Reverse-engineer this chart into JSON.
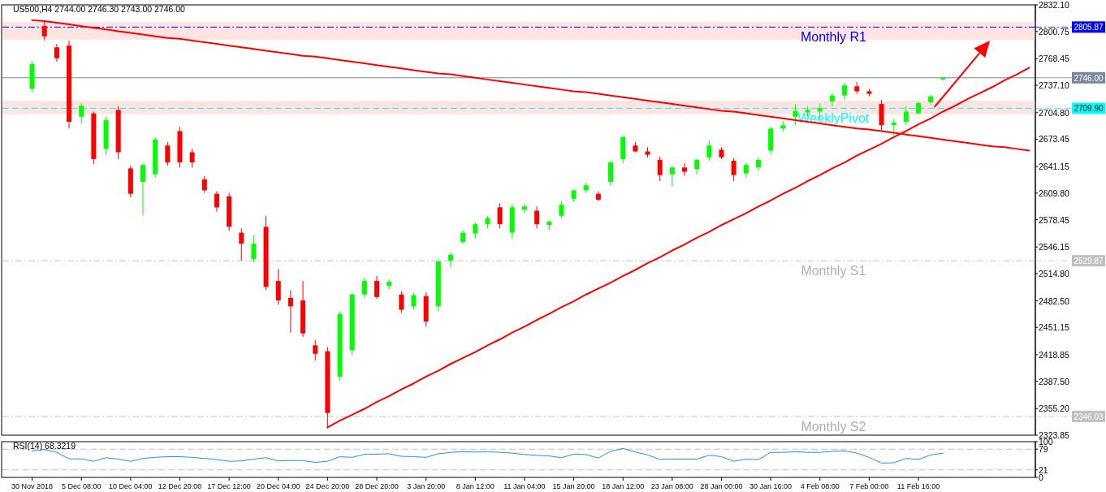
{
  "chart_data": [
    {
      "type": "candlestick",
      "title": "US500,H4  2744.00 2746.30 2743.00 2746.00",
      "categories": [
        null,
        null,
        null,
        null,
        null,
        null,
        null,
        null,
        null,
        null,
        null,
        null,
        null,
        null,
        null,
        null,
        null,
        null,
        null,
        null,
        null,
        null,
        null,
        null,
        null,
        null,
        null,
        null,
        null,
        null,
        null,
        null,
        null,
        null,
        null,
        null,
        null,
        null,
        null,
        null,
        null,
        null,
        null,
        null,
        null,
        null,
        null,
        null,
        null,
        null,
        null,
        null,
        null,
        null,
        null,
        null,
        null,
        null,
        null,
        null,
        null,
        null,
        null,
        null,
        null,
        null,
        null,
        null,
        null,
        null,
        null,
        null,
        null,
        null,
        null,
        null,
        null,
        null,
        null,
        null,
        null,
        null
      ],
      "ohlc": [
        [
          2733,
          2766,
          2729,
          2762
        ],
        [
          2807,
          2812,
          2790,
          2795
        ],
        [
          2782,
          2786,
          2765,
          2769
        ],
        [
          2784,
          2790,
          2686,
          2694
        ],
        [
          2700,
          2716,
          2692,
          2713
        ],
        [
          2704,
          2706,
          2644,
          2650
        ],
        [
          2662,
          2700,
          2655,
          2696
        ],
        [
          2708,
          2712,
          2650,
          2658
        ],
        [
          2639,
          2642,
          2605,
          2609
        ],
        [
          2623,
          2645,
          2583,
          2643
        ],
        [
          2632,
          2676,
          2628,
          2673
        ],
        [
          2666,
          2670,
          2642,
          2646
        ],
        [
          2683,
          2688,
          2640,
          2646
        ],
        [
          2658,
          2662,
          2640,
          2646
        ],
        [
          2626,
          2630,
          2610,
          2613
        ],
        [
          2609,
          2612,
          2588,
          2593
        ],
        [
          2606,
          2610,
          2565,
          2570
        ],
        [
          2563,
          2568,
          2530,
          2550
        ],
        [
          2532,
          2560,
          2528,
          2550
        ],
        [
          2570,
          2583,
          2495,
          2499
        ],
        [
          2506,
          2520,
          2478,
          2483
        ],
        [
          2486,
          2495,
          2445,
          2476
        ],
        [
          2483,
          2506,
          2440,
          2444
        ],
        [
          2430,
          2436,
          2412,
          2420
        ],
        [
          2423,
          2428,
          2332,
          2350
        ],
        [
          2393,
          2470,
          2388,
          2467
        ],
        [
          2424,
          2492,
          2418,
          2490
        ],
        [
          2490,
          2510,
          2486,
          2506
        ],
        [
          2506,
          2512,
          2485,
          2487
        ],
        [
          2500,
          2508,
          2496,
          2505
        ],
        [
          2490,
          2494,
          2468,
          2472
        ],
        [
          2476,
          2492,
          2472,
          2489
        ],
        [
          2488,
          2493,
          2452,
          2458
        ],
        [
          2476,
          2532,
          2470,
          2529
        ],
        [
          2530,
          2540,
          2522,
          2537
        ],
        [
          2552,
          2566,
          2550,
          2563
        ],
        [
          2562,
          2575,
          2556,
          2573
        ],
        [
          2573,
          2583,
          2568,
          2580
        ],
        [
          2593,
          2598,
          2568,
          2573
        ],
        [
          2563,
          2597,
          2556,
          2593
        ],
        [
          2590,
          2597,
          2586,
          2594
        ],
        [
          2589,
          2594,
          2568,
          2573
        ],
        [
          2572,
          2578,
          2566,
          2576
        ],
        [
          2583,
          2600,
          2580,
          2596
        ],
        [
          2603,
          2614,
          2600,
          2613
        ],
        [
          2613,
          2622,
          2610,
          2619
        ],
        [
          2609,
          2612,
          2600,
          2602
        ],
        [
          2623,
          2648,
          2618,
          2646
        ],
        [
          2650,
          2676,
          2645,
          2676
        ],
        [
          2666,
          2670,
          2658,
          2659
        ],
        [
          2659,
          2664,
          2652,
          2655
        ],
        [
          2649,
          2653,
          2624,
          2631
        ],
        [
          2632,
          2642,
          2618,
          2640
        ],
        [
          2640,
          2645,
          2630,
          2635
        ],
        [
          2638,
          2650,
          2632,
          2649
        ],
        [
          2652,
          2672,
          2648,
          2666
        ],
        [
          2661,
          2664,
          2650,
          2652
        ],
        [
          2648,
          2651,
          2624,
          2631
        ],
        [
          2633,
          2645,
          2628,
          2643
        ],
        [
          2640,
          2652,
          2636,
          2649
        ],
        [
          2660,
          2688,
          2655,
          2686
        ],
        [
          2686,
          2695,
          2682,
          2690
        ],
        [
          2700,
          2715,
          2690,
          2707
        ],
        [
          2705,
          2712,
          2700,
          2708
        ],
        [
          2706,
          2716,
          2698,
          2710
        ],
        [
          2718,
          2728,
          2712,
          2725
        ],
        [
          2725,
          2740,
          2720,
          2737
        ],
        [
          2736,
          2741,
          2727,
          2730
        ],
        [
          2730,
          2733,
          2724,
          2727
        ],
        [
          2715,
          2720,
          2684,
          2690
        ],
        [
          2690,
          2697,
          2678,
          2693
        ],
        [
          2694,
          2712,
          2690,
          2706
        ],
        [
          2704,
          2718,
          2702,
          2716
        ],
        [
          2717,
          2726,
          2714,
          2724
        ],
        [
          2744,
          2746.3,
          2743,
          2746
        ],
        null,
        null,
        null,
        null,
        null,
        null,
        null
      ],
      "colors": [
        "#00ff00",
        "#ff0000",
        "#ff0000",
        "#ff0000",
        "#00ff00",
        "#ff0000",
        "#00ff00",
        "#ff0000",
        "#ff0000",
        "#00ff00",
        "#00ff00",
        "#ff0000",
        "#ff0000",
        "#ff0000",
        "#ff0000",
        "#ff0000",
        "#ff0000",
        "#ff0000",
        "#00ff00",
        "#ff0000",
        "#ff0000",
        "#ff0000",
        "#ff0000",
        "#ff0000",
        "#ff0000",
        "#00ff00",
        "#00ff00",
        "#00ff00",
        "#ff0000",
        "#00ff00",
        "#ff0000",
        "#00ff00",
        "#ff0000",
        "#00ff00",
        "#00ff00",
        "#00ff00",
        "#00ff00",
        "#00ff00",
        "#ff0000",
        "#00ff00",
        "#00ff00",
        "#ff0000",
        "#00ff00",
        "#00ff00",
        "#00ff00",
        "#00ff00",
        "#ff0000",
        "#00ff00",
        "#00ff00",
        "#ff0000",
        "#ff0000",
        "#ff0000",
        "#00ff00",
        "#ff0000",
        "#00ff00",
        "#00ff00",
        "#ff0000",
        "#ff0000",
        "#00ff00",
        "#00ff00",
        "#00ff00",
        "#00ff00",
        "#00ff00",
        "#00ff00",
        "#00ff00",
        "#00ff00",
        "#00ff00",
        "#ff0000",
        "#ff0000",
        "#ff0000",
        "#00ff00",
        "#00ff00",
        "#00ff00",
        "#00ff00",
        "#00ff00",
        null,
        null,
        null,
        null,
        null,
        null,
        null
      ],
      "series": [
        {
          "type": "line",
          "color": "#ff0000",
          "values": [
            2814,
            2813,
            2811,
            2809,
            2807,
            2805,
            2803,
            2801,
            2799,
            2797,
            2795,
            2793,
            2792,
            2790,
            2788,
            2786,
            2784,
            2782,
            2780,
            2778,
            2776,
            2774,
            2772,
            2771,
            2769,
            2767,
            2765,
            2763,
            2761,
            2759,
            2757,
            2755,
            2753,
            2751,
            2750,
            2748,
            2746,
            2744,
            2742,
            2740,
            2738,
            2736,
            2734,
            2732,
            2730,
            2729,
            2727,
            2725,
            2723,
            2721,
            2719,
            2717,
            2715,
            2713,
            2711,
            2709,
            2707,
            2706,
            2704,
            2702,
            2700,
            2698,
            2696,
            2694,
            2692,
            2690,
            2688,
            2686,
            2685,
            2683,
            2681,
            2679,
            2677,
            2675,
            2673,
            2671,
            2669,
            2667,
            2665,
            2664,
            2662,
            2660
          ]
        },
        {
          "type": "line",
          "color": "#ff0000",
          "values": [
            null,
            null,
            null,
            null,
            null,
            null,
            null,
            null,
            null,
            null,
            null,
            null,
            null,
            null,
            null,
            null,
            null,
            null,
            null,
            null,
            null,
            null,
            null,
            null,
            2333,
            2341,
            2348,
            2355,
            2363,
            2370,
            2378,
            2385,
            2393,
            2400,
            2408,
            2415,
            2422,
            2430,
            2437,
            2445,
            2452,
            2460,
            2467,
            2475,
            2482,
            2490,
            2497,
            2504,
            2512,
            2519,
            2527,
            2534,
            2542,
            2549,
            2557,
            2564,
            2572,
            2579,
            2586,
            2594,
            2601,
            2609,
            2616,
            2624,
            2631,
            2639,
            2646,
            2654,
            2661,
            2668,
            2676,
            2683,
            2691,
            2698,
            2706,
            2713,
            2721,
            2728,
            2735,
            2743,
            2750,
            2758
          ]
        }
      ],
      "ylim": [
        2323.85,
        2832.1
      ],
      "yticks": [
        {
          "value": 2832.1,
          "label": "2832.10"
        },
        2800.75,
        2768.45,
        {
          "value": 2737.1,
          "label": "2737.10"
        },
        {
          "value": 2704.8,
          "label": "2704.80"
        },
        2673.45,
        2641.15,
        {
          "value": 2609.8,
          "label": "2609.80"
        },
        2578.45,
        2546.15,
        {
          "value": 2514.8,
          "label": "2514.80"
        },
        {
          "value": 2482.5,
          "label": "2482.50"
        },
        2451.15,
        2418.85,
        {
          "value": 2387.5,
          "label": "2387.50"
        },
        {
          "value": 2355.2,
          "label": "2355.20"
        },
        2323.85
      ],
      "bands": [
        {
          "axis": "y",
          "from": 2791,
          "to": 2812,
          "color": "#ffe4e1"
        },
        {
          "axis": "y",
          "from": 2703,
          "to": 2719,
          "color": "#ffe4e1"
        }
      ],
      "ref_lines": [
        {
          "axis": "y",
          "value": 2805.87,
          "label": "2805.87",
          "color": "#0000ff",
          "line_style": "dashdot"
        },
        {
          "axis": "y",
          "value": 2746,
          "label": "2746.00",
          "color": "#778899",
          "line_style": "solid"
        },
        {
          "axis": "y",
          "value": 2709.9,
          "label": "2709.90",
          "color": "#00ffff",
          "line_style": "dashed"
        },
        {
          "axis": "y",
          "value": 2529.87,
          "label": "2529.87",
          "color": "#c0c0c0",
          "line_style": "dashdot"
        },
        {
          "axis": "y",
          "value": 2346.03,
          "label": "2346.03",
          "color": "#c0c0c0",
          "line_style": "dashdot"
        }
      ],
      "annotations": [
        {
          "text": "Monthly R1",
          "y": 2805.87
        },
        {
          "text": "WeeklyPivot",
          "y": 2709.9
        },
        {
          "text": "Monthly S1",
          "y": 2529.87
        },
        {
          "text": "Monthly S2",
          "y": 2346.03
        }
      ]
    },
    {
      "type": "line",
      "title": "RSI(14) 68.3219",
      "categories": [
        "30 Nov 2018",
        null,
        null,
        null,
        "5 Dec 08:00",
        null,
        null,
        null,
        "10 Dec 04:00",
        null,
        null,
        null,
        "12 Dec 20:00",
        null,
        null,
        null,
        "17 Dec 12:00",
        null,
        null,
        null,
        "20 Dec 04:00",
        null,
        null,
        null,
        "24 Dec 20:00",
        null,
        null,
        null,
        "28 Dec 20:00",
        null,
        null,
        null,
        "3 Jan 20:00",
        null,
        null,
        null,
        "8 Jan 12:00",
        null,
        null,
        null,
        "11 Jan 04:00",
        null,
        null,
        null,
        "15 Jan 20:00",
        null,
        null,
        null,
        "18 Jan 12:00",
        null,
        null,
        null,
        "23 Jan 08:00",
        null,
        null,
        null,
        "28 Jan 00:00",
        null,
        null,
        null,
        "30 Jan 16:00",
        null,
        null,
        null,
        "4 Feb 08:00",
        null,
        null,
        null,
        "7 Feb 00:00",
        null,
        null,
        null,
        "11 Feb 16:00",
        null,
        null,
        null,
        null,
        null,
        null,
        null,
        null,
        null
      ],
      "series": [
        {
          "color": "#1e90ff",
          "values": [
            74,
            78,
            70,
            52,
            52,
            45,
            55,
            51,
            45,
            53,
            56,
            58,
            58,
            56,
            53,
            50,
            45,
            46,
            51,
            55,
            46,
            47,
            47,
            42,
            45,
            58,
            56,
            65,
            65,
            66,
            59,
            58,
            56,
            66,
            70,
            72,
            71,
            72,
            70,
            68,
            64,
            62,
            60,
            55,
            65,
            64,
            54,
            73,
            81,
            71,
            63,
            50,
            51,
            51,
            51,
            62,
            58,
            45,
            51,
            50,
            70,
            70,
            72,
            70,
            70,
            73,
            74,
            68,
            56,
            40,
            41,
            53,
            50,
            63,
            68,
            null,
            null,
            null,
            null,
            null,
            null,
            null
          ]
        }
      ],
      "ylim": [
        0,
        100
      ],
      "yticks": [
        0,
        21,
        79,
        100
      ],
      "ref_lines": [
        {
          "axis": "y",
          "value": 79,
          "color": "#c0c0c0",
          "line_style": "dashed"
        },
        {
          "axis": "y",
          "value": 21,
          "color": "#c0c0c0",
          "line_style": "dashed"
        }
      ]
    }
  ]
}
